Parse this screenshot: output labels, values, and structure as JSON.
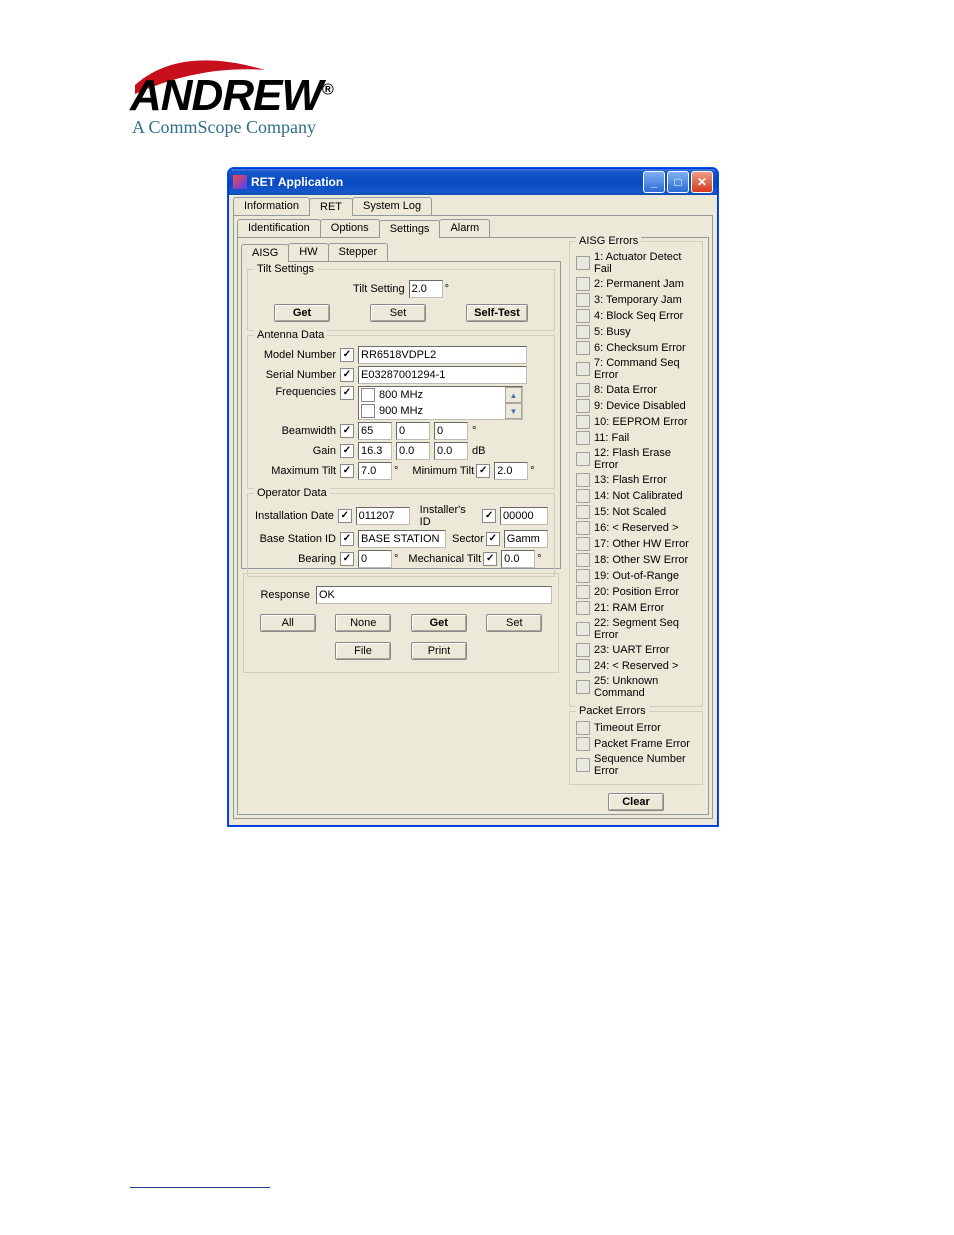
{
  "logo": {
    "text": "ANDREW",
    "reg": "®",
    "sub": "A CommScope Company"
  },
  "win": {
    "title": "RET Application"
  },
  "toptabs": [
    "Information",
    "RET",
    "System Log"
  ],
  "toptabs_active": 1,
  "midtabs": [
    "Identification",
    "Options",
    "Settings",
    "Alarm"
  ],
  "midtabs_active": 2,
  "subtabs": [
    "AISG",
    "HW",
    "Stepper"
  ],
  "subtabs_active": 0,
  "tilt": {
    "group": "Tilt Settings",
    "label": "Tilt Setting",
    "value": "2.0",
    "get": "Get",
    "set": "Set",
    "selftest": "Self-Test"
  },
  "ant": {
    "group": "Antenna Data",
    "model": {
      "label": "Model Number",
      "checked": true,
      "value": "RR6518VDPL2"
    },
    "serial": {
      "label": "Serial Number",
      "checked": true,
      "value": "E03287001294-1"
    },
    "freq": {
      "label": "Frequencies",
      "checked": true,
      "opt1": "800 MHz",
      "opt2": "900 MHz"
    },
    "beam": {
      "label": "Beamwidth",
      "checked": true,
      "v1": "65",
      "v2": "0",
      "v3": "0",
      "unit": "°"
    },
    "gain": {
      "label": "Gain",
      "checked": true,
      "v1": "16.3",
      "v2": "0.0",
      "v3": "0.0",
      "unit": "dB"
    },
    "max": {
      "label": "Maximum Tilt",
      "checked": true,
      "value": "7.0",
      "unit": "°"
    },
    "min": {
      "label": "Minimum Tilt",
      "checked": true,
      "value": "2.0",
      "unit": "°"
    }
  },
  "op": {
    "group": "Operator Data",
    "idate": {
      "label": "Installation Date",
      "checked": true,
      "value": "011207"
    },
    "iid": {
      "label": "Installer's ID",
      "checked": true,
      "value": "00000"
    },
    "bsid": {
      "label": "Base Station ID",
      "checked": true,
      "value": "BASE STATION"
    },
    "sector": {
      "label": "Sector",
      "checked": true,
      "value": "Gamm"
    },
    "bearing": {
      "label": "Bearing",
      "checked": true,
      "value": "0",
      "unit": "°"
    },
    "mtilt": {
      "label": "Mechanical Tilt",
      "checked": true,
      "value": "0.0",
      "unit": "°"
    }
  },
  "resp": {
    "label": "Response",
    "value": "OK"
  },
  "btns": {
    "all": "All",
    "none": "None",
    "get": "Get",
    "set": "Set",
    "file": "File",
    "print": "Print",
    "clear": "Clear"
  },
  "aisg": {
    "group": "AISG Errors",
    "items": [
      "1: Actuator Detect Fail",
      "2: Permanent Jam",
      "3: Temporary Jam",
      "4: Block Seq Error",
      "5: Busy",
      "6: Checksum Error",
      "7: Command Seq Error",
      "8: Data Error",
      "9: Device Disabled",
      "10: EEPROM Error",
      "11: Fail",
      "12: Flash Erase Error",
      "13: Flash Error",
      "14: Not Calibrated",
      "15: Not Scaled",
      "16: < Reserved >",
      "17: Other HW Error",
      "18: Other SW Error",
      "19: Out-of-Range",
      "20: Position Error",
      "21: RAM Error",
      "22: Segment Seq Error",
      "23: UART Error",
      "24: < Reserved >",
      "25: Unknown Command"
    ]
  },
  "pkt": {
    "group": "Packet Errors",
    "items": [
      "Timeout Error",
      "Packet Frame Error",
      "Sequence Number Error"
    ]
  }
}
